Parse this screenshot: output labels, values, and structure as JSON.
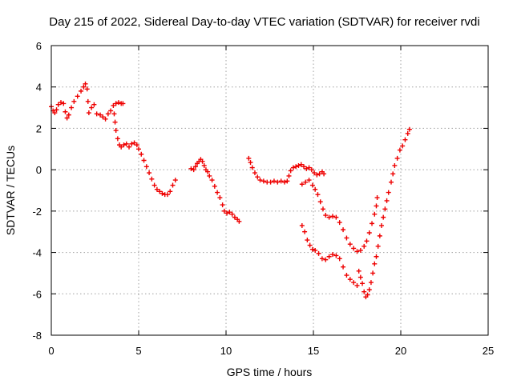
{
  "chart_data": {
    "type": "scatter",
    "title": "Day 215 of 2022, Sidereal Day-to-day VTEC variation (SDTVAR) for receiver rvdi",
    "xlabel": "GPS time / hours",
    "ylabel": "SDTVAR / TECUs",
    "xlim": [
      0,
      25
    ],
    "ylim": [
      -8,
      6
    ],
    "xticks": [
      "0",
      "5",
      "10",
      "15",
      "20",
      "25"
    ],
    "yticks": [
      "-8",
      "-6",
      "-4",
      "-2",
      "0",
      "2",
      "4",
      "6"
    ],
    "grid": true,
    "marker": "plus",
    "color": "#ee0000",
    "series": [
      {
        "points": [
          [
            0.0,
            3.05
          ],
          [
            0.1,
            2.85
          ],
          [
            0.2,
            2.75
          ],
          [
            0.3,
            2.9
          ],
          [
            0.4,
            3.15
          ],
          [
            0.55,
            3.25
          ],
          [
            0.7,
            3.2
          ],
          [
            0.8,
            2.8
          ],
          [
            0.9,
            2.5
          ],
          [
            1.0,
            2.65
          ],
          [
            1.15,
            3.0
          ],
          [
            1.3,
            3.3
          ],
          [
            1.5,
            3.55
          ],
          [
            1.7,
            3.8
          ],
          [
            1.85,
            4.0
          ],
          [
            1.95,
            4.15
          ],
          [
            2.05,
            3.9
          ],
          [
            2.1,
            3.3
          ],
          [
            2.15,
            2.75
          ],
          [
            2.3,
            3.0
          ],
          [
            2.45,
            3.15
          ],
          [
            2.6,
            2.7
          ],
          [
            2.8,
            2.65
          ],
          [
            2.95,
            2.55
          ],
          [
            3.1,
            2.45
          ],
          [
            3.25,
            2.7
          ],
          [
            3.4,
            2.85
          ],
          [
            3.55,
            3.1
          ],
          [
            3.7,
            3.2
          ],
          [
            3.85,
            3.25
          ],
          [
            4.0,
            3.2
          ],
          [
            4.1,
            3.2
          ],
          [
            3.6,
            2.7
          ],
          [
            3.65,
            2.3
          ],
          [
            3.7,
            1.9
          ],
          [
            3.8,
            1.5
          ],
          [
            3.9,
            1.2
          ],
          [
            4.0,
            1.1
          ],
          [
            4.15,
            1.2
          ],
          [
            4.3,
            1.25
          ],
          [
            4.45,
            1.1
          ],
          [
            4.6,
            1.25
          ],
          [
            4.75,
            1.3
          ],
          [
            4.9,
            1.2
          ],
          [
            5.0,
            1.0
          ],
          [
            5.15,
            0.75
          ],
          [
            5.3,
            0.45
          ],
          [
            5.45,
            0.15
          ],
          [
            5.6,
            -0.15
          ],
          [
            5.75,
            -0.45
          ],
          [
            5.9,
            -0.75
          ],
          [
            6.05,
            -0.95
          ],
          [
            6.2,
            -1.05
          ],
          [
            6.35,
            -1.15
          ],
          [
            6.5,
            -1.2
          ],
          [
            6.65,
            -1.2
          ],
          [
            6.8,
            -1.05
          ],
          [
            6.95,
            -0.75
          ],
          [
            7.1,
            -0.5
          ],
          [
            8.0,
            0.05
          ],
          [
            8.15,
            0.0
          ],
          [
            8.25,
            0.15
          ],
          [
            8.35,
            0.3
          ],
          [
            8.45,
            0.4
          ],
          [
            8.55,
            0.5
          ],
          [
            8.65,
            0.4
          ],
          [
            8.75,
            0.2
          ],
          [
            8.85,
            0.0
          ],
          [
            8.95,
            -0.1
          ],
          [
            9.05,
            -0.3
          ],
          [
            9.2,
            -0.5
          ],
          [
            9.35,
            -0.8
          ],
          [
            9.5,
            -1.1
          ],
          [
            9.65,
            -1.35
          ],
          [
            9.8,
            -1.7
          ],
          [
            9.9,
            -2.0
          ],
          [
            10.05,
            -2.1
          ],
          [
            10.2,
            -2.05
          ],
          [
            10.35,
            -2.15
          ],
          [
            10.5,
            -2.3
          ],
          [
            10.65,
            -2.4
          ],
          [
            10.75,
            -2.5
          ],
          [
            11.3,
            0.55
          ],
          [
            11.4,
            0.35
          ],
          [
            11.5,
            0.1
          ],
          [
            11.65,
            -0.15
          ],
          [
            11.8,
            -0.35
          ],
          [
            11.95,
            -0.5
          ],
          [
            12.15,
            -0.55
          ],
          [
            12.35,
            -0.6
          ],
          [
            12.55,
            -0.6
          ],
          [
            12.75,
            -0.55
          ],
          [
            12.95,
            -0.6
          ],
          [
            13.15,
            -0.55
          ],
          [
            13.35,
            -0.6
          ],
          [
            13.5,
            -0.55
          ],
          [
            13.6,
            -0.3
          ],
          [
            13.7,
            -0.05
          ],
          [
            13.85,
            0.1
          ],
          [
            14.0,
            0.15
          ],
          [
            14.15,
            0.2
          ],
          [
            14.3,
            0.25
          ],
          [
            14.45,
            0.15
          ],
          [
            14.6,
            0.05
          ],
          [
            14.75,
            0.1
          ],
          [
            14.9,
            0.0
          ],
          [
            15.05,
            -0.15
          ],
          [
            15.2,
            -0.25
          ],
          [
            15.35,
            -0.2
          ],
          [
            15.5,
            -0.1
          ],
          [
            15.6,
            -0.2
          ],
          [
            14.35,
            -0.7
          ],
          [
            14.55,
            -0.6
          ],
          [
            14.75,
            -0.5
          ],
          [
            14.95,
            -0.75
          ],
          [
            15.1,
            -0.95
          ],
          [
            15.25,
            -1.2
          ],
          [
            15.4,
            -1.55
          ],
          [
            15.55,
            -1.9
          ],
          [
            15.7,
            -2.2
          ],
          [
            15.9,
            -2.3
          ],
          [
            16.1,
            -2.25
          ],
          [
            16.3,
            -2.3
          ],
          [
            16.5,
            -2.55
          ],
          [
            16.7,
            -2.9
          ],
          [
            16.9,
            -3.3
          ],
          [
            17.1,
            -3.6
          ],
          [
            17.3,
            -3.8
          ],
          [
            17.5,
            -3.95
          ],
          [
            17.7,
            -3.9
          ],
          [
            17.9,
            -3.7
          ],
          [
            18.05,
            -3.45
          ],
          [
            18.2,
            -3.05
          ],
          [
            18.35,
            -2.6
          ],
          [
            18.5,
            -2.15
          ],
          [
            18.6,
            -1.75
          ],
          [
            18.65,
            -1.35
          ],
          [
            14.35,
            -2.7
          ],
          [
            14.5,
            -3.0
          ],
          [
            14.65,
            -3.4
          ],
          [
            14.8,
            -3.65
          ],
          [
            14.95,
            -3.85
          ],
          [
            15.1,
            -3.9
          ],
          [
            15.3,
            -4.05
          ],
          [
            15.5,
            -4.3
          ],
          [
            15.7,
            -4.35
          ],
          [
            15.9,
            -4.2
          ],
          [
            16.1,
            -4.1
          ],
          [
            16.3,
            -4.15
          ],
          [
            16.5,
            -4.3
          ],
          [
            16.7,
            -4.7
          ],
          [
            16.9,
            -5.1
          ],
          [
            17.1,
            -5.3
          ],
          [
            17.3,
            -5.45
          ],
          [
            17.5,
            -5.6
          ],
          [
            17.6,
            -4.9
          ],
          [
            17.7,
            -5.2
          ],
          [
            17.8,
            -5.5
          ],
          [
            17.9,
            -5.9
          ],
          [
            18.0,
            -6.15
          ],
          [
            18.1,
            -6.05
          ],
          [
            18.2,
            -5.8
          ],
          [
            18.3,
            -5.45
          ],
          [
            18.4,
            -5.0
          ],
          [
            18.5,
            -4.55
          ],
          [
            18.6,
            -4.2
          ],
          [
            18.7,
            -3.7
          ],
          [
            18.8,
            -3.2
          ],
          [
            18.9,
            -2.7
          ],
          [
            19.0,
            -2.3
          ],
          [
            19.1,
            -1.9
          ],
          [
            19.2,
            -1.5
          ],
          [
            19.3,
            -1.1
          ],
          [
            19.45,
            -0.6
          ],
          [
            19.55,
            -0.2
          ],
          [
            19.65,
            0.2
          ],
          [
            19.8,
            0.55
          ],
          [
            19.95,
            0.95
          ],
          [
            20.1,
            1.15
          ],
          [
            20.25,
            1.45
          ],
          [
            20.4,
            1.75
          ],
          [
            20.5,
            1.95
          ]
        ]
      }
    ]
  }
}
